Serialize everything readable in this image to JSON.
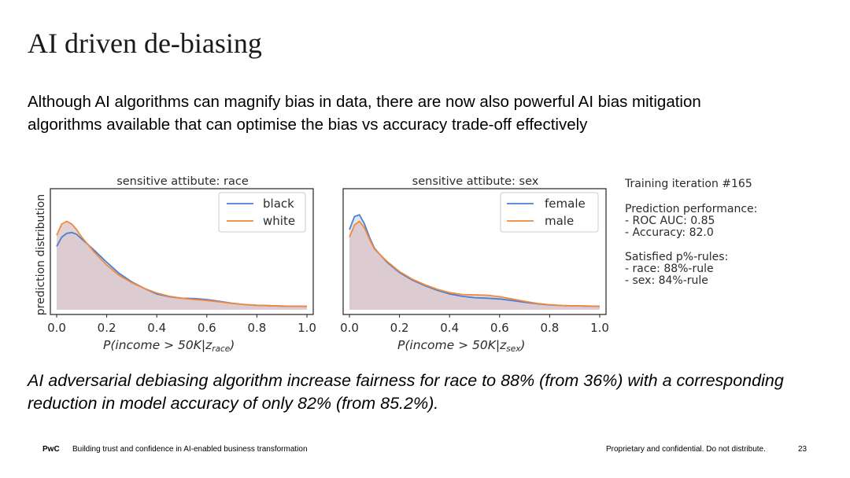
{
  "slide": {
    "title": "AI driven de-biasing",
    "intro": "Although AI algorithms can magnify bias in data, there are now also powerful AI bias mitigation algorithms available that can optimise the bias vs accuracy trade-off effectively",
    "conclusion": "AI adversarial debiasing algorithm increase fairness for race to 88% (from 36%) with a corresponding reduction in model accuracy of only 82% (from 85.2%)."
  },
  "footer": {
    "brand": "PwC",
    "tagline": "Building trust and confidence in AI-enabled business transformation",
    "confidential": "Proprietary and confidential. Do not distribute.",
    "page_number": "23"
  },
  "training_panel": {
    "iteration": "Training iteration #165",
    "performance_heading": "Prediction performance:",
    "roc_auc": "- ROC AUC: 0.85",
    "accuracy": "- Accuracy: 82.0",
    "rules_heading": "Satisfied p%-rules:",
    "race_rule": "- race: 88%-rule",
    "sex_rule": "- sex: 84%-rule"
  },
  "colors": {
    "series_blue": "#4a7fd6",
    "series_orange": "#f08a3c",
    "fill_overlap": "#d9c3c5"
  },
  "chart_data": [
    {
      "type": "area",
      "title": "sensitive attibute: race",
      "ylabel": "prediction distribution",
      "xlabel_base": "P(income > 50K|z",
      "xlabel_sub": "race",
      "xlabel_close": ")",
      "xlim": [
        0.0,
        1.0
      ],
      "ylim": [
        0,
        6.5
      ],
      "xticks": [
        "0.0",
        "0.2",
        "0.4",
        "0.6",
        "0.8",
        "1.0"
      ],
      "legend_position": "top-right",
      "x": [
        0.0,
        0.02,
        0.04,
        0.06,
        0.08,
        0.1,
        0.15,
        0.2,
        0.25,
        0.3,
        0.35,
        0.4,
        0.45,
        0.5,
        0.55,
        0.6,
        0.65,
        0.7,
        0.75,
        0.8,
        0.85,
        0.9,
        0.95,
        1.0
      ],
      "series": [
        {
          "name": "black",
          "color": "#4a7fd6",
          "values": [
            3.4,
            3.9,
            4.1,
            4.15,
            4.05,
            3.8,
            3.2,
            2.55,
            1.95,
            1.5,
            1.15,
            0.85,
            0.7,
            0.62,
            0.6,
            0.55,
            0.45,
            0.35,
            0.28,
            0.24,
            0.22,
            0.2,
            0.19,
            0.18
          ]
        },
        {
          "name": "white",
          "color": "#f08a3c",
          "values": [
            4.0,
            4.6,
            4.75,
            4.6,
            4.3,
            3.9,
            3.1,
            2.4,
            1.85,
            1.45,
            1.15,
            0.9,
            0.72,
            0.62,
            0.55,
            0.5,
            0.42,
            0.34,
            0.28,
            0.24,
            0.22,
            0.2,
            0.19,
            0.18
          ]
        }
      ]
    },
    {
      "type": "area",
      "title": "sensitive attibute: sex",
      "xlabel_base": "P(income > 50K|z",
      "xlabel_sub": "sex",
      "xlabel_close": ")",
      "xlim": [
        0.0,
        1.0
      ],
      "ylim": [
        0,
        6.5
      ],
      "xticks": [
        "0.0",
        "0.2",
        "0.4",
        "0.6",
        "0.8",
        "1.0"
      ],
      "legend_position": "top-right",
      "x": [
        0.0,
        0.02,
        0.04,
        0.06,
        0.08,
        0.1,
        0.15,
        0.2,
        0.25,
        0.3,
        0.35,
        0.4,
        0.45,
        0.5,
        0.55,
        0.6,
        0.65,
        0.7,
        0.75,
        0.8,
        0.85,
        0.9,
        0.95,
        1.0
      ],
      "series": [
        {
          "name": "female",
          "color": "#4a7fd6",
          "values": [
            4.3,
            5.0,
            5.1,
            4.6,
            3.9,
            3.3,
            2.55,
            2.0,
            1.6,
            1.3,
            1.05,
            0.85,
            0.72,
            0.65,
            0.62,
            0.58,
            0.5,
            0.4,
            0.32,
            0.26,
            0.23,
            0.21,
            0.2,
            0.19
          ]
        },
        {
          "name": "male",
          "color": "#f08a3c",
          "values": [
            3.9,
            4.55,
            4.75,
            4.4,
            3.8,
            3.25,
            2.6,
            2.05,
            1.65,
            1.35,
            1.1,
            0.92,
            0.82,
            0.8,
            0.78,
            0.7,
            0.58,
            0.45,
            0.34,
            0.27,
            0.23,
            0.21,
            0.2,
            0.19
          ]
        }
      ]
    }
  ]
}
